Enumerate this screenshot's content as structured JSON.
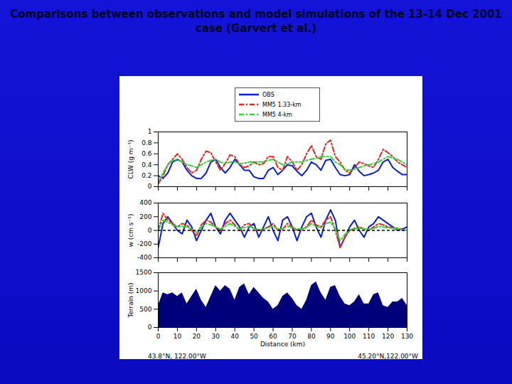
{
  "title": "Comparisons between observations and model simulations of the 13-14 Dec 2001 case (Garvert et al.)",
  "chart_data": [
    {
      "type": "line",
      "y_label": "CLW (g m⁻³)",
      "legend": "top",
      "tick_labels": "y",
      "x": [
        0,
        2.5,
        5,
        7.5,
        10,
        12.5,
        15,
        17.5,
        20,
        22.5,
        25,
        27.5,
        30,
        32.5,
        35,
        37.5,
        40,
        42.5,
        45,
        47.5,
        50,
        52.5,
        55,
        57.5,
        60,
        62.5,
        65,
        67.5,
        70,
        72.5,
        75,
        77.5,
        80,
        82.5,
        85,
        87.5,
        90,
        92.5,
        95,
        97.5,
        100,
        102.5,
        105,
        107.5,
        110,
        112.5,
        115,
        117.5,
        120,
        122.5,
        125,
        127.5,
        130
      ],
      "xlim": [
        0,
        130
      ],
      "xticks": [
        0,
        10,
        20,
        30,
        40,
        50,
        60,
        70,
        80,
        90,
        100,
        110,
        120,
        130
      ],
      "ylim": [
        0,
        1
      ],
      "yticks": [
        0,
        0.2,
        0.4,
        0.6,
        0.8,
        1
      ],
      "series": [
        {
          "name": "OBS",
          "color": "#0a1ed2",
          "line_style": "solid",
          "values": [
            0.2,
            0.15,
            0.25,
            0.45,
            0.5,
            0.45,
            0.3,
            0.2,
            0.15,
            0.15,
            0.25,
            0.45,
            0.5,
            0.35,
            0.25,
            0.35,
            0.5,
            0.4,
            0.3,
            0.3,
            0.18,
            0.15,
            0.15,
            0.3,
            0.35,
            0.22,
            0.3,
            0.4,
            0.38,
            0.28,
            0.2,
            0.3,
            0.45,
            0.4,
            0.3,
            0.48,
            0.5,
            0.35,
            0.22,
            0.2,
            0.22,
            0.4,
            0.28,
            0.2,
            0.22,
            0.25,
            0.3,
            0.45,
            0.5,
            0.35,
            0.28,
            0.22,
            0.22
          ]
        },
        {
          "name": "MM5 1.33-km",
          "color": "#e0261e",
          "line_style": "dashdot",
          "values": [
            0.05,
            0.2,
            0.4,
            0.5,
            0.6,
            0.5,
            0.35,
            0.25,
            0.3,
            0.5,
            0.65,
            0.62,
            0.45,
            0.3,
            0.42,
            0.58,
            0.55,
            0.4,
            0.35,
            0.38,
            0.45,
            0.4,
            0.42,
            0.55,
            0.55,
            0.35,
            0.3,
            0.55,
            0.45,
            0.3,
            0.4,
            0.6,
            0.75,
            0.55,
            0.5,
            0.78,
            0.85,
            0.55,
            0.45,
            0.3,
            0.25,
            0.35,
            0.45,
            0.42,
            0.38,
            0.35,
            0.5,
            0.68,
            0.62,
            0.55,
            0.45,
            0.4,
            0.35
          ]
        },
        {
          "name": "MM5 4-km",
          "color": "#2ed43a",
          "line_style": "dashdot",
          "values": [
            0.1,
            0.25,
            0.4,
            0.48,
            0.5,
            0.45,
            0.4,
            0.38,
            0.35,
            0.4,
            0.45,
            0.48,
            0.5,
            0.45,
            0.42,
            0.45,
            0.45,
            0.42,
            0.43,
            0.45,
            0.45,
            0.45,
            0.45,
            0.48,
            0.5,
            0.45,
            0.4,
            0.42,
            0.45,
            0.45,
            0.45,
            0.48,
            0.5,
            0.52,
            0.55,
            0.55,
            0.55,
            0.45,
            0.4,
            0.32,
            0.3,
            0.32,
            0.35,
            0.38,
            0.4,
            0.42,
            0.45,
            0.5,
            0.55,
            0.52,
            0.5,
            0.45,
            0.4
          ]
        }
      ]
    },
    {
      "type": "line",
      "y_label": "w (cm s⁻¹)",
      "tick_labels": "y",
      "reference_y": 0,
      "x": [
        0,
        2.5,
        5,
        7.5,
        10,
        12.5,
        15,
        17.5,
        20,
        22.5,
        25,
        27.5,
        30,
        32.5,
        35,
        37.5,
        40,
        42.5,
        45,
        47.5,
        50,
        52.5,
        55,
        57.5,
        60,
        62.5,
        65,
        67.5,
        70,
        72.5,
        75,
        77.5,
        80,
        82.5,
        85,
        87.5,
        90,
        92.5,
        95,
        97.5,
        100,
        102.5,
        105,
        107.5,
        110,
        112.5,
        115,
        117.5,
        120,
        122.5,
        125,
        127.5,
        130
      ],
      "xlim": [
        0,
        130
      ],
      "xticks": [
        0,
        10,
        20,
        30,
        40,
        50,
        60,
        70,
        80,
        90,
        100,
        110,
        120,
        130
      ],
      "ylim": [
        -400,
        400
      ],
      "yticks": [
        -400,
        -200,
        0,
        200,
        400
      ],
      "series": [
        {
          "name": "OBS",
          "color": "#0a1ed2",
          "line_style": "solid",
          "values": [
            -250,
            100,
            200,
            100,
            0,
            -50,
            150,
            50,
            -150,
            0,
            150,
            250,
            50,
            -50,
            150,
            250,
            150,
            50,
            -100,
            50,
            100,
            -100,
            50,
            200,
            0,
            -150,
            150,
            200,
            50,
            -150,
            50,
            200,
            250,
            50,
            -100,
            150,
            300,
            150,
            -250,
            -100,
            50,
            150,
            0,
            -100,
            50,
            100,
            200,
            150,
            100,
            50,
            0,
            20,
            50
          ]
        },
        {
          "name": "MM5 1.33-km",
          "color": "#e0261e",
          "line_style": "dashdot",
          "values": [
            0,
            250,
            150,
            100,
            50,
            100,
            80,
            0,
            -80,
            80,
            150,
            120,
            50,
            0,
            100,
            150,
            80,
            0,
            80,
            100,
            20,
            0,
            20,
            50,
            100,
            0,
            20,
            100,
            50,
            0,
            20,
            50,
            150,
            80,
            50,
            150,
            200,
            0,
            -250,
            -100,
            0,
            30,
            50,
            20,
            0,
            50,
            100,
            80,
            50,
            40,
            30,
            10,
            0
          ]
        },
        {
          "name": "MM5 4-km",
          "color": "#2ed43a",
          "line_style": "dashdot",
          "values": [
            0,
            150,
            120,
            80,
            50,
            60,
            50,
            20,
            -30,
            50,
            100,
            80,
            50,
            20,
            60,
            100,
            60,
            20,
            40,
            60,
            30,
            10,
            20,
            40,
            60,
            20,
            20,
            60,
            40,
            20,
            20,
            40,
            100,
            60,
            40,
            100,
            120,
            20,
            -150,
            -60,
            0,
            20,
            30,
            20,
            10,
            30,
            60,
            50,
            40,
            30,
            20,
            10,
            0
          ]
        }
      ]
    },
    {
      "type": "area",
      "y_label": "Terrain (m)",
      "x_label": "Distance (km)",
      "color": "#00007a",
      "annotations": [
        "43.8°N, 122.00°W",
        "45.20°N,122.00°W"
      ],
      "x": [
        0,
        2.5,
        5,
        7.5,
        10,
        12.5,
        15,
        17.5,
        20,
        22.5,
        25,
        27.5,
        30,
        32.5,
        35,
        37.5,
        40,
        42.5,
        45,
        47.5,
        50,
        52.5,
        55,
        57.5,
        60,
        62.5,
        65,
        67.5,
        70,
        72.5,
        75,
        77.5,
        80,
        82.5,
        85,
        87.5,
        90,
        92.5,
        95,
        97.5,
        100,
        102.5,
        105,
        107.5,
        110,
        112.5,
        115,
        117.5,
        120,
        122.5,
        125,
        127.5,
        130
      ],
      "xlim": [
        0,
        130
      ],
      "xticks": [
        0,
        10,
        20,
        30,
        40,
        50,
        60,
        70,
        80,
        90,
        100,
        110,
        120,
        130
      ],
      "ylim": [
        0,
        1500
      ],
      "yticks": [
        0,
        500,
        1000,
        1500
      ],
      "values": [
        600,
        950,
        900,
        950,
        850,
        950,
        650,
        850,
        1050,
        750,
        550,
        850,
        1150,
        1000,
        1150,
        1050,
        750,
        1100,
        1200,
        900,
        1100,
        950,
        800,
        700,
        500,
        600,
        850,
        950,
        800,
        600,
        500,
        750,
        1150,
        1250,
        950,
        750,
        1100,
        1150,
        850,
        650,
        600,
        700,
        900,
        650,
        650,
        900,
        950,
        600,
        550,
        700,
        700,
        800,
        600
      ]
    }
  ]
}
